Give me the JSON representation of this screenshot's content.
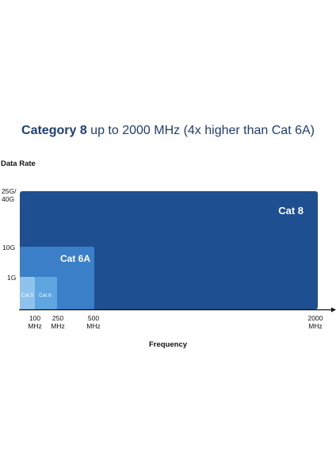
{
  "header": {
    "title_bold": "Category 8",
    "title_rest": " up to 2000 MHz (4x higher than Cat 6A)"
  },
  "chart_data": {
    "type": "area",
    "title": "Category 8 up to 2000 MHz (4x higher than Cat 6A)",
    "xlabel": "Frequency",
    "ylabel": "Data Rate",
    "x_ticks": [
      {
        "line1": "100",
        "line2": "MHz"
      },
      {
        "line1": "250",
        "line2": "MHz"
      },
      {
        "line1": "500",
        "line2": "MHz"
      },
      {
        "line1": "2000",
        "line2": "MHz"
      }
    ],
    "y_ticks": [
      {
        "line1": "1G",
        "line2": ""
      },
      {
        "line1": "10G",
        "line2": ""
      },
      {
        "line1": "25G/",
        "line2": "40G"
      }
    ],
    "series": [
      {
        "name": "Cat 8",
        "frequency_mhz": 2000,
        "data_rate": "25G/40G",
        "color": "#1d4f91"
      },
      {
        "name": "Cat 6A",
        "frequency_mhz": 500,
        "data_rate": "10G",
        "color": "#3a7fc8"
      },
      {
        "name": "Cat 6",
        "frequency_mhz": 250,
        "data_rate": "1G",
        "color": "#5ea6e0"
      },
      {
        "name": "Cat 5",
        "frequency_mhz": 100,
        "data_rate": "1G",
        "color": "#8ec3ee"
      }
    ],
    "legend": "inline"
  }
}
